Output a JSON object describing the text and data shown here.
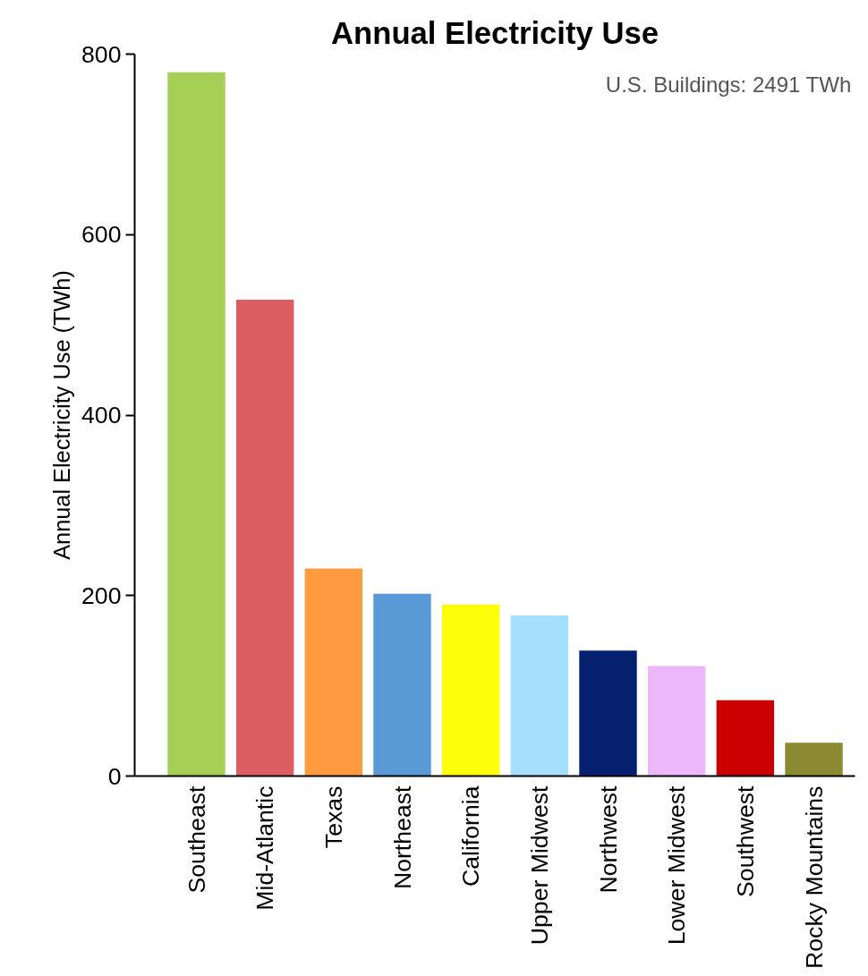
{
  "chart_data": {
    "type": "bar",
    "title": "Annual Electricity Use",
    "ylabel": "Annual Electricity Use (TWh)",
    "categories": [
      "Southeast",
      "Mid-Atlantic",
      "Texas",
      "Northeast",
      "California",
      "Upper Midwest",
      "Northwest",
      "Lower Midwest",
      "Southwest",
      "Rocky Mountains"
    ],
    "values": [
      780,
      528,
      230,
      202,
      190,
      178,
      139,
      122,
      84,
      37
    ],
    "colors": [
      "#a5d055",
      "#dc5e63",
      "#fd9b3e",
      "#5898d4",
      "#fdfd0a",
      "#a3e0fc",
      "#05206f",
      "#ecb8fa",
      "#ca0000",
      "#898a32"
    ],
    "ylim": [
      0,
      800
    ],
    "yticks": [
      0,
      200,
      400,
      600,
      800
    ],
    "grid": false,
    "annotations": [
      "U.S. Buildings: 2491 TWh"
    ]
  }
}
